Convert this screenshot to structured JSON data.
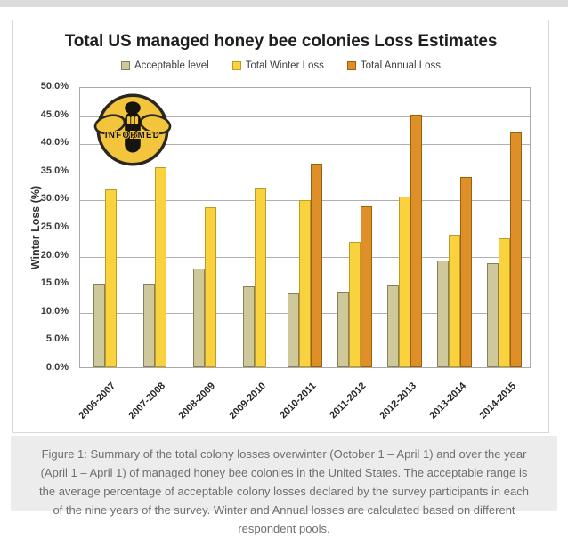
{
  "chart_data": {
    "type": "bar",
    "title": "Total US managed honey bee colonies Loss Estimates",
    "categories": [
      "2006-2007",
      "2007-2008",
      "2008-2009",
      "2009-2010",
      "2010-2011",
      "2011-2012",
      "2012-2013",
      "2013-2014",
      "2014-2015"
    ],
    "series": [
      {
        "name": "Acceptable level",
        "fill": "#CFC89B",
        "border": "#84805E",
        "values": [
          15.0,
          15.0,
          17.6,
          14.5,
          13.2,
          13.6,
          14.6,
          19.1,
          18.7
        ]
      },
      {
        "name": "Total Winter Loss",
        "fill": "#F9D23D",
        "border": "#BA9D27",
        "values": [
          31.8,
          35.8,
          28.6,
          32.2,
          29.9,
          22.5,
          30.5,
          23.7,
          23.1
        ]
      },
      {
        "name": "Total Annual Loss",
        "fill": "#DE8F28",
        "border": "#99610E",
        "values": [
          null,
          null,
          null,
          null,
          36.4,
          28.9,
          45.2,
          34.1,
          42.1
        ]
      }
    ],
    "xlabel": "",
    "ylabel": "Winter Loss (%)",
    "ylim": [
      0,
      50
    ],
    "ytick_step": 5,
    "ytick_suffix": "%",
    "grid": true,
    "legend_position": "top"
  },
  "logo": {
    "text": "INFORMED"
  },
  "caption": {
    "text": "Figure 1: Summary of the total colony losses overwinter (October 1 – April 1) and over the year (April 1 – April 1) of managed honey bee colonies in the United States. The acceptable range is the average percentage of acceptable colony losses declared by the survey participants in each of the nine years of the survey. Winter and Annual losses are calculated based on different respondent pools."
  }
}
